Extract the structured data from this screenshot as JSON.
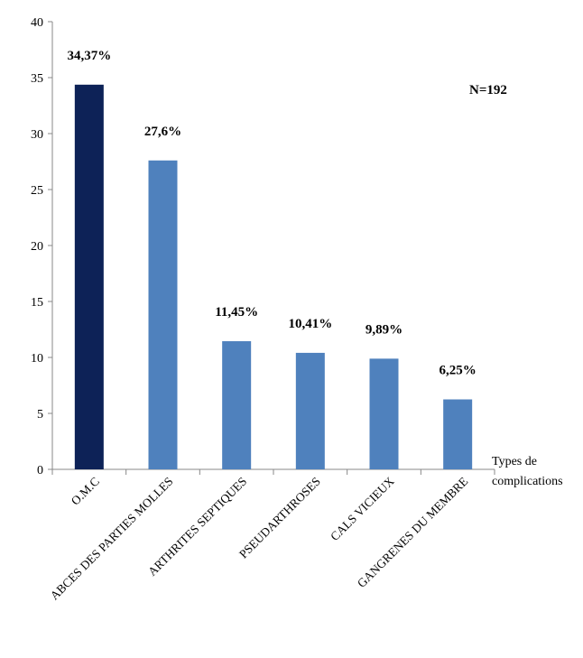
{
  "chart_data": {
    "type": "bar",
    "categories": [
      "O.M.C",
      "ABCES DES PARTIES MOLLES",
      "ARTHRITES SEPTIQUES",
      "PSEUDARTHROSES",
      "CALS VICIEUX",
      "GANGRENES DU MEMBRE"
    ],
    "values": [
      34.37,
      27.6,
      11.45,
      10.41,
      9.89,
      6.25
    ],
    "data_labels": [
      "34,37%",
      "27,6%",
      "11,45%",
      "10,41%",
      "9,89%",
      "6,25%"
    ],
    "bar_colors": [
      "#0d2257",
      "#4f81bd",
      "#4f81bd",
      "#4f81bd",
      "#4f81bd",
      "#4f81bd"
    ],
    "ylim": [
      0,
      40
    ],
    "yticks": [
      "0",
      "5",
      "10",
      "15",
      "20",
      "25",
      "30",
      "35",
      "40"
    ],
    "xlabel_line1": "Types de",
    "xlabel_line2": "complications",
    "annotation": "N=192",
    "grid": false
  }
}
